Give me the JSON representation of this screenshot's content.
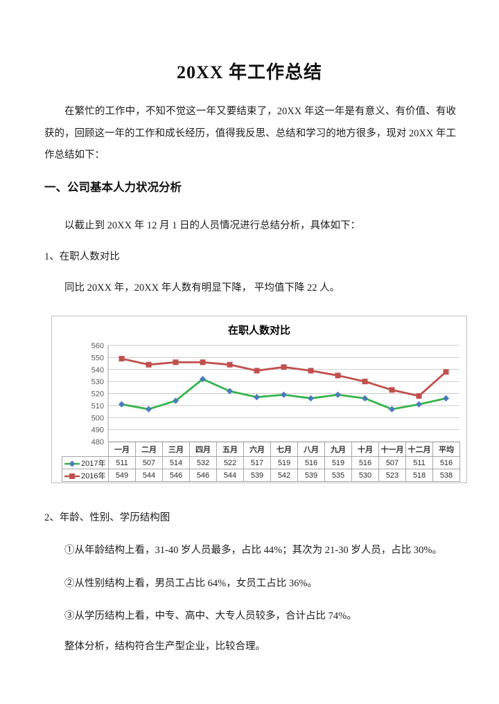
{
  "document": {
    "title": "20XX 年工作总结",
    "intro": "在繁忙的工作中，不知不觉这一年又要结束了，20XX 年这一年是有意义、有价值、有收获的，回顾这一年的工作和成长经历，值得我反思、总结和学习的地方很多，现对 20XX 年工作总结如下：",
    "section1": {
      "heading": "一、公司基本人力状况分析",
      "intro": "以截止到 20XX 年 12 月 1 日的人员情况进行总结分析，具体如下：",
      "item1_title": "1、在职人数对比",
      "item1_text": "同比 20XX 年，20XX 年人数有明显下降， 平均值下降 22 人。",
      "item2_title": "2、年龄、性别、学历结构图",
      "item2_points": [
        "①从年龄结构上看，31-40 岁人员最多，占比 44%；其次为 21-30 岁人员，占比 30%。",
        "②从性别结构上看，男员工占比 64%，女员工占比 36%。",
        "③从学历结构上看，中专、高中、大专人员较多，合计占比 74%。"
      ],
      "item2_summary": "整体分析，结构符合生产型企业，比较合理。"
    }
  },
  "chart_data": {
    "type": "line",
    "title": "在职人数对比",
    "categories": [
      "一月",
      "二月",
      "三月",
      "四月",
      "五月",
      "六月",
      "七月",
      "八月",
      "九月",
      "十月",
      "十一月",
      "十二月",
      "平均"
    ],
    "series": [
      {
        "name": "2017年",
        "values": [
          511,
          507,
          514,
          532,
          522,
          517,
          519,
          516,
          519,
          516,
          507,
          511,
          516
        ],
        "line_color": "#35B44A",
        "marker": "diamond",
        "marker_color": "#4A7CB8"
      },
      {
        "name": "2016年",
        "values": [
          549,
          544,
          546,
          546,
          544,
          539,
          542,
          539,
          535,
          530,
          523,
          518,
          538
        ],
        "line_color": "#C0504D",
        "marker": "square",
        "marker_color": "#C0504D"
      }
    ],
    "ylim": [
      480,
      560
    ],
    "ytick_step": 10,
    "yticks": [
      480,
      490,
      500,
      510,
      520,
      530,
      540,
      550,
      560
    ],
    "grid": true,
    "legend_position": "table-left",
    "colors": {
      "gridline": "#C9C9C9",
      "axis_line": "#A6A6A6",
      "axis_label": "#595959",
      "table_border": "#A6A6A6",
      "chart_border": "#BFBFBF"
    }
  }
}
